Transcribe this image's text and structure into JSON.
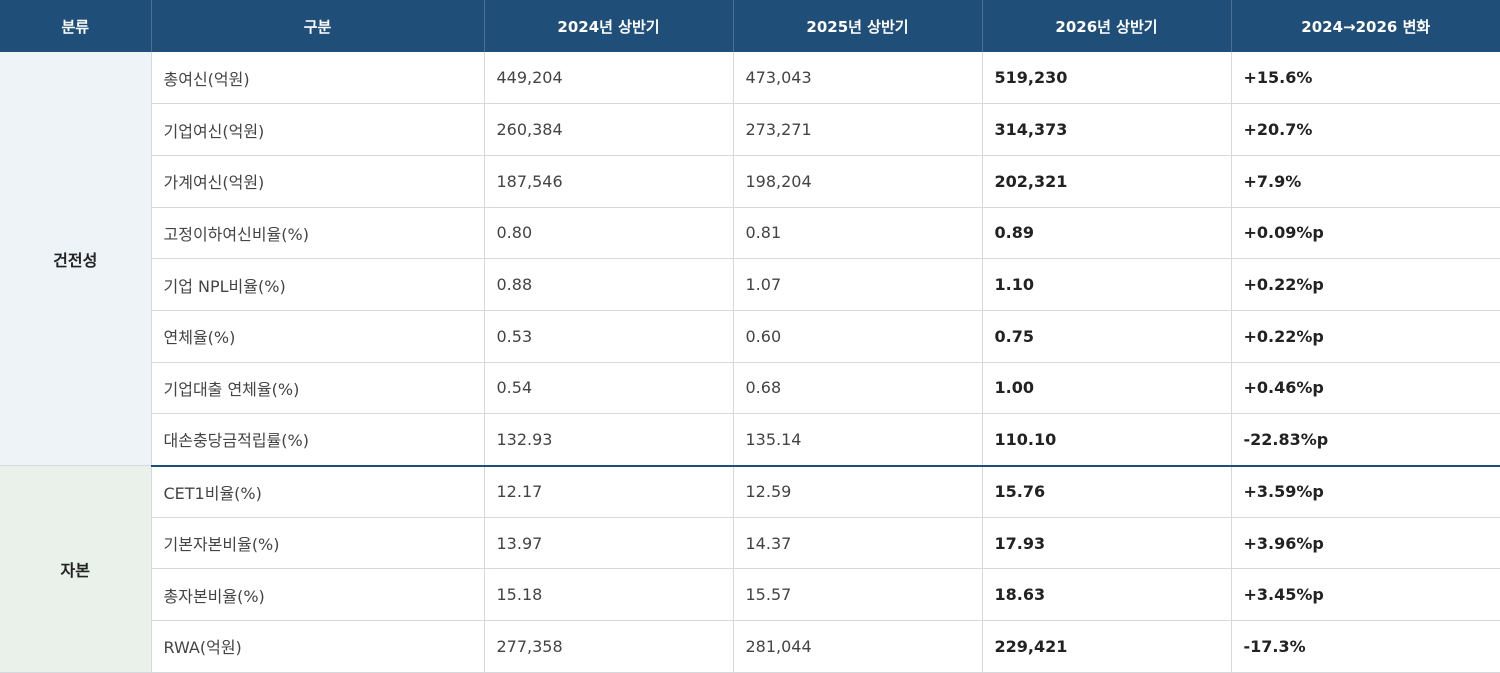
{
  "header": [
    "분류",
    "구분",
    "2024년 상반기",
    "2025년 상반기",
    "2026년 상반기",
    "2024→2026 변화"
  ],
  "groups": [
    {
      "category": "건전성",
      "rows": [
        [
          "총여신(억원)",
          "449,204",
          "473,043",
          "519,230",
          "+15.6%"
        ],
        [
          "기업여신(억원)",
          "260,384",
          "273,271",
          "314,373",
          "+20.7%"
        ],
        [
          "가계여신(억원)",
          "187,546",
          "198,204",
          "202,321",
          "+7.9%"
        ],
        [
          "고정이하여신비율(%)",
          "0.80",
          "0.81",
          "0.89",
          "+0.09%p"
        ],
        [
          "기업 NPL비율(%)",
          "0.88",
          "1.07",
          "1.10",
          "+0.22%p"
        ],
        [
          "연체율(%)",
          "0.53",
          "0.60",
          "0.75",
          "+0.22%p"
        ],
        [
          "기업대출 연체율(%)",
          "0.54",
          "0.68",
          "1.00",
          "+0.46%p"
        ],
        [
          "대손충당금적립률(%)",
          "132.93",
          "135.14",
          "110.10",
          "-22.83%p"
        ]
      ]
    },
    {
      "category": "자본",
      "rows": [
        [
          "CET1비율(%)",
          "12.17",
          "12.59",
          "15.76",
          "+3.59%p"
        ],
        [
          "기본자본비율(%)",
          "13.97",
          "14.37",
          "17.93",
          "+3.96%p"
        ],
        [
          "총자본비율(%)",
          "15.18",
          "15.57",
          "18.63",
          "+3.45%p"
        ],
        [
          "RWA(억원)",
          "277,358",
          "281,044",
          "229,421",
          "-17.3%"
        ]
      ]
    }
  ],
  "colors": {
    "header_bg": "#1f4e79",
    "soundness_bg": "#edf3f7",
    "capital_bg": "#e9f1ea"
  }
}
